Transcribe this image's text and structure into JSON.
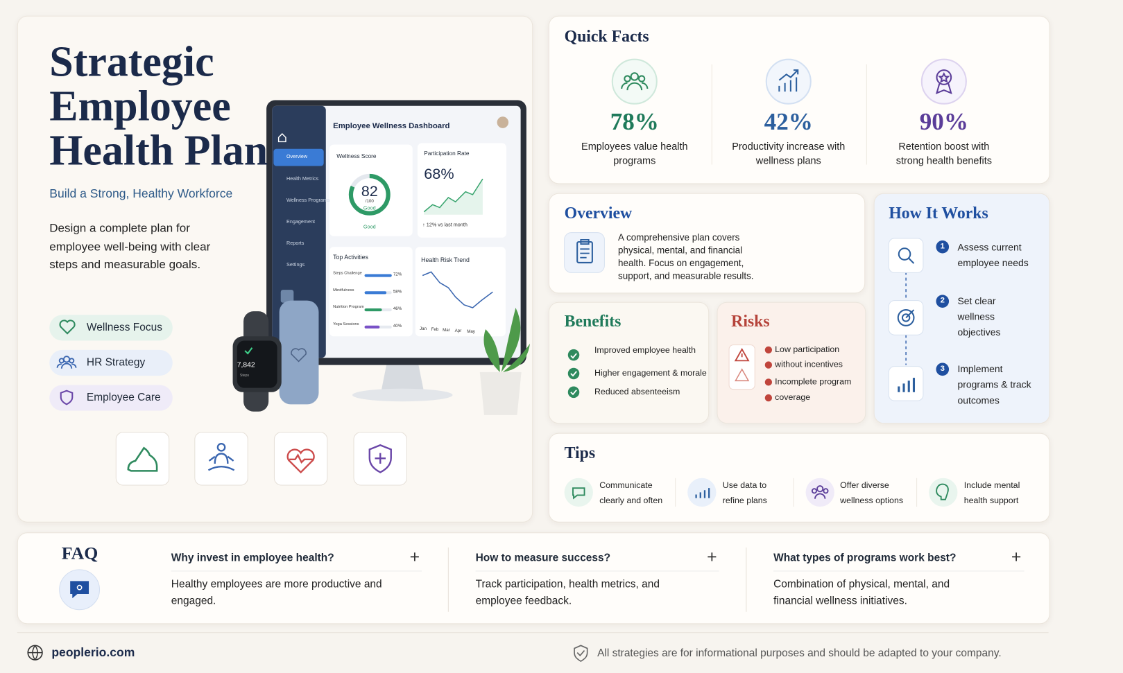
{
  "hero": {
    "title": "Strategic Employee Health Plan",
    "subtitle": "Build a Strong, Healthy Workforce",
    "description": "Design a complete plan for employee well-being with clear steps and measurable goals.",
    "tags": [
      "Wellness Focus",
      "HR Strategy",
      "Employee Care"
    ]
  },
  "dashboard": {
    "title": "Employee Wellness Dashboard",
    "nav": [
      "Overview",
      "Health Metrics",
      "Wellness Programs",
      "Engagement",
      "Reports",
      "Settings"
    ],
    "wellness_score": {
      "label": "Wellness Score",
      "value": "82",
      "scale": "/100",
      "status": "Good",
      "footer": "Good"
    },
    "participation": {
      "label": "Participation Rate",
      "value": "68%",
      "note": "↑ 12% vs last month"
    },
    "top_activities": {
      "title": "Top Activities",
      "items": [
        {
          "name": "Steps Challenge",
          "pct": "72%"
        },
        {
          "name": "Mindfulness",
          "pct": "58%"
        },
        {
          "name": "Nutrition Program",
          "pct": "46%"
        },
        {
          "name": "Yoga Sessions",
          "pct": "40%"
        }
      ]
    },
    "health_risk": {
      "title": "Health Risk Trend",
      "months": [
        "Jan",
        "Feb",
        "Mar",
        "Apr",
        "May"
      ]
    },
    "watch": {
      "steps": "7,842",
      "label": "Steps"
    }
  },
  "quick_facts": {
    "title": "Quick Facts",
    "items": [
      {
        "value": "78%",
        "text": "Employees value health programs"
      },
      {
        "value": "42%",
        "text": "Productivity increase with wellness plans"
      },
      {
        "value": "90%",
        "text": "Retention boost with strong health benefits"
      }
    ]
  },
  "overview": {
    "title": "Overview",
    "text": "A comprehensive plan covers physical, mental, and financial health. Focus on engagement, support, and measurable results."
  },
  "how_it_works": {
    "title": "How It Works",
    "steps": [
      {
        "number": "1",
        "text": "Assess current employee needs"
      },
      {
        "number": "2",
        "text": "Set clear wellness objectives"
      },
      {
        "number": "3",
        "text": "Implement programs & track outcomes"
      }
    ]
  },
  "benefits": {
    "title": "Benefits",
    "items": [
      "Improved employee health",
      "Higher engagement & morale",
      "Reduced absenteeism"
    ]
  },
  "risks": {
    "title": "Risks",
    "items": [
      "Low participation",
      "without incentives",
      "Incomplete program",
      "coverage"
    ]
  },
  "tips": {
    "title": "Tips",
    "items": [
      "Communicate clearly and often",
      "Use data to refine plans",
      "Offer diverse wellness options",
      "Include mental health support"
    ]
  },
  "faq": {
    "title": "FAQ",
    "items": [
      {
        "question": "Why invest in employee health?",
        "answer": "Healthy employees are more productive and engaged.",
        "toggle": "+"
      },
      {
        "question": "How to measure success?",
        "answer": "Track participation, health metrics, and employee feedback.",
        "toggle": "+"
      },
      {
        "question": "What types of programs work best?",
        "answer": "Combination of physical, mental, and financial wellness initiatives.",
        "toggle": "+"
      }
    ]
  },
  "footer": {
    "site": "peoplerio.com",
    "disclaimer": "All strategies are for informational purposes and should be adapted to your company."
  }
}
